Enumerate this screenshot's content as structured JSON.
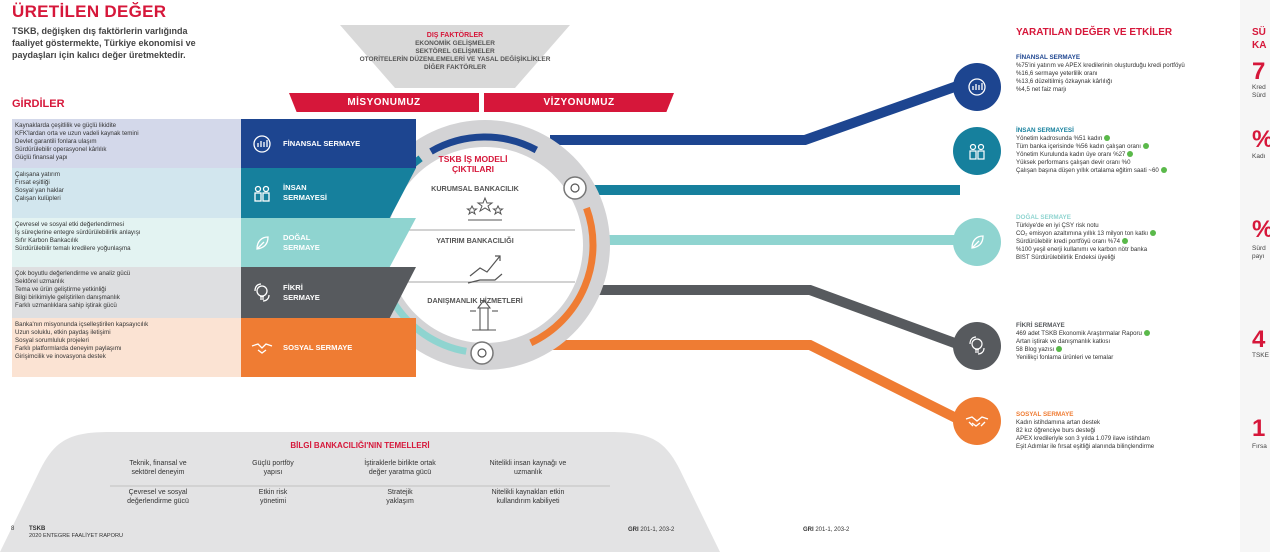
{
  "title": "ÜRETİLEN DEĞER",
  "intro": [
    "TSKB, değişken dış faktörlerin varlığında",
    "faaliyet göstermekte, Türkiye ekonomisi ve",
    "paydaşları için kalıcı değer üretmektedir."
  ],
  "inputs_title": "GİRDİLER",
  "external": {
    "title": "DIŞ FAKTÖRLER",
    "items": [
      "EKONOMİK GELİŞMELER",
      "SEKTÖREL GELİŞMELER",
      "OTORİTELERİN DÜZENLEMELERİ VE YASAL DEĞİŞİKLİKLER",
      "DİĞER FAKTÖRLER"
    ]
  },
  "mission": "MİSYONUMUZ",
  "vision": "VİZYONUMUZ",
  "inputs": [
    {
      "lines": [
        "Kaynaklarda çeşitlilik ve güçlü likidite",
        "KFK'lardan orta ve uzun vadeli kaynak temini",
        "Devlet garantili fonlara ulaşım",
        "Sürdürülebilir operasyonel kârlılık",
        "Güçlü finansal yapı"
      ],
      "bg": "#d3d8ea"
    },
    {
      "lines": [
        "Çalışana yatırım",
        "Fırsat eşitliği",
        "Sosyal yan haklar",
        "Çalışan kulüpleri"
      ],
      "bg": "#d2e6ee"
    },
    {
      "lines": [
        "Çevresel ve sosyal etki değerlendirmesi",
        "İş süreçlerine entegre sürdürülebilirlik anlayışı",
        "Sıfır Karbon Bankacılık",
        "Sürdürülebilir temalı kredilere yoğunlaşma"
      ],
      "bg": "#e3f3f2"
    },
    {
      "lines": [
        "Çok boyutlu değerlendirme ve analiz gücü",
        "Sektörel uzmanlık",
        "Tema ve ürün geliştirme yetkinliği",
        "Bilgi birikimiyle geliştirilen danışmanlık",
        "Farklı uzmanlıklara sahip iştirak gücü"
      ],
      "bg": "#dedfe1"
    },
    {
      "lines": [
        "Banka'nın misyonunda içselleştirilen kapsayıcılık",
        "Uzun soluklu, etkin paydaş iletişimi",
        "Sosyal sorumluluk projeleri",
        "Farklı platformlarda deneyim paylaşımı",
        "Girişimcilik ve inovasyona destek"
      ],
      "bg": "#fbe3d3"
    }
  ],
  "capitals": [
    {
      "label": [
        "FİNANSAL SERMAYE"
      ],
      "color": "#1d4590",
      "icon": "finance-icon"
    },
    {
      "label": [
        "İNSAN",
        "SERMAYESİ"
      ],
      "color": "#16809d",
      "icon": "people-icon"
    },
    {
      "label": [
        "DOĞAL",
        "SERMAYE"
      ],
      "color": "#8fd4d0",
      "icon": "leaf-icon"
    },
    {
      "label": [
        "FİKRİ",
        "SERMAYE"
      ],
      "color": "#575a5e",
      "icon": "idea-icon"
    },
    {
      "label": [
        "SOSYAL SERMAYE"
      ],
      "color": "#ef7c33",
      "icon": "handshake-icon"
    }
  ],
  "circle": {
    "title": [
      "TSKB İŞ MODELİ",
      "ÇIKTILARI"
    ],
    "items": [
      "KURUMSAL BANKACILIK",
      "YATIRIM BANKACILIĞI",
      "DANIŞMANLIK HİZMETLERİ"
    ]
  },
  "outputs_title": "YARATILAN DEĞER VE ETKİLER",
  "outputs": [
    {
      "title": "FİNANSAL SERMAYE",
      "color": "#1d4590",
      "lines": [
        [
          "%75'ini yatırım ve APEX kredilerinin oluşturduğu kredi portföyü",
          false
        ],
        [
          "%16,6 sermaye yeterlilik oranı",
          false
        ],
        [
          "%13,6 düzeltilmiş özkaynak kârlılığı",
          false
        ],
        [
          "%4,5 net faiz marjı",
          false
        ]
      ]
    },
    {
      "title": "İNSAN SERMAYESİ",
      "color": "#16809d",
      "lines": [
        [
          "Yönetim kadrosunda %51 kadın",
          true
        ],
        [
          "Tüm banka içerisinde %56 kadın çalışan oranı",
          true
        ],
        [
          "Yönetim Kurulunda kadın üye oranı %27",
          true
        ],
        [
          "Yüksek performans çalışan devir oranı %0",
          false
        ],
        [
          "Çalışan başına düşen yıllık ortalama eğitim saati ~60",
          true
        ]
      ]
    },
    {
      "title": "DOĞAL SERMAYE",
      "color": "#8fd4d0",
      "lines": [
        [
          "Türkiye'de en iyi ÇSY risk notu",
          false
        ],
        [
          "CO₂ emisyon azaltımına yıllık 13 milyon ton katkı",
          true
        ],
        [
          "Sürdürülebilir kredi portföyü oranı %74",
          true
        ],
        [
          "%100 yeşil enerji kullanımı ve karbon nötr banka",
          false
        ],
        [
          "BIST Sürdürülebilirlik Endeksi üyeliği",
          false
        ]
      ]
    },
    {
      "title": "FİKRİ SERMAYE",
      "color": "#575a5e",
      "lines": [
        [
          "469 adet TSKB Ekonomik Araştırmalar Raporu",
          true
        ],
        [
          "Artan iştirak ve danışmanlık katkısı",
          false
        ],
        [
          "58 Blog yazısı",
          true
        ],
        [
          "Yenilikçi fonlama ürünleri ve temalar",
          false
        ]
      ]
    },
    {
      "title": "SOSYAL SERMAYE",
      "color": "#ef7c33",
      "lines": [
        [
          "Kadın istihdamına artan destek",
          false
        ],
        [
          "82 kız öğrenciye burs desteği",
          false
        ],
        [
          "APEX kredileriyle son 3 yılda 1.079 ilave istihdam",
          false
        ],
        [
          "Eşit Adımlar ile fırsat eşitliği alanında bilinçlendirme",
          false
        ]
      ]
    }
  ],
  "right_panel": {
    "title": [
      "SÜ",
      "KA"
    ],
    "items": [
      {
        "big": "7",
        "small": [
          "Kred",
          "Sürd"
        ]
      },
      {
        "big": "%",
        "small": [
          "Kadı"
        ]
      },
      {
        "big": "%",
        "small": [
          "Sürd",
          "payı"
        ]
      },
      {
        "big": "4",
        "small": [
          "TSKE"
        ]
      },
      {
        "big": "1",
        "small": [
          "Fırsa"
        ]
      }
    ]
  },
  "knowledge": {
    "title": "BİLGİ BANKACILIĞI'NIN TEMELLERİ",
    "row1": [
      [
        "Teknik, finansal ve",
        "sektörel deneyim"
      ],
      [
        "Güçlü portföy",
        "yapısı"
      ],
      [
        "İştiraklerle birlikte ortak",
        "değer yaratma gücü"
      ],
      [
        "Nitelikli insan kaynağı ve",
        "uzmanlık"
      ]
    ],
    "row2": [
      [
        "Çevresel ve sosyal",
        "değerlendirme gücü"
      ],
      [
        "Etkin risk",
        "yönetimi"
      ],
      [
        "Stratejik",
        "yaklaşım"
      ],
      [
        "Nitelikli kaynakları etkin",
        "kullandırım kabiliyeti"
      ]
    ]
  },
  "footer": {
    "page": "8",
    "company": "TSKB",
    "report": "2020 ENTEGRE FAALİYET RAPORU",
    "gri_label": "GRI",
    "gri_value": " 201-1, 203-2"
  }
}
